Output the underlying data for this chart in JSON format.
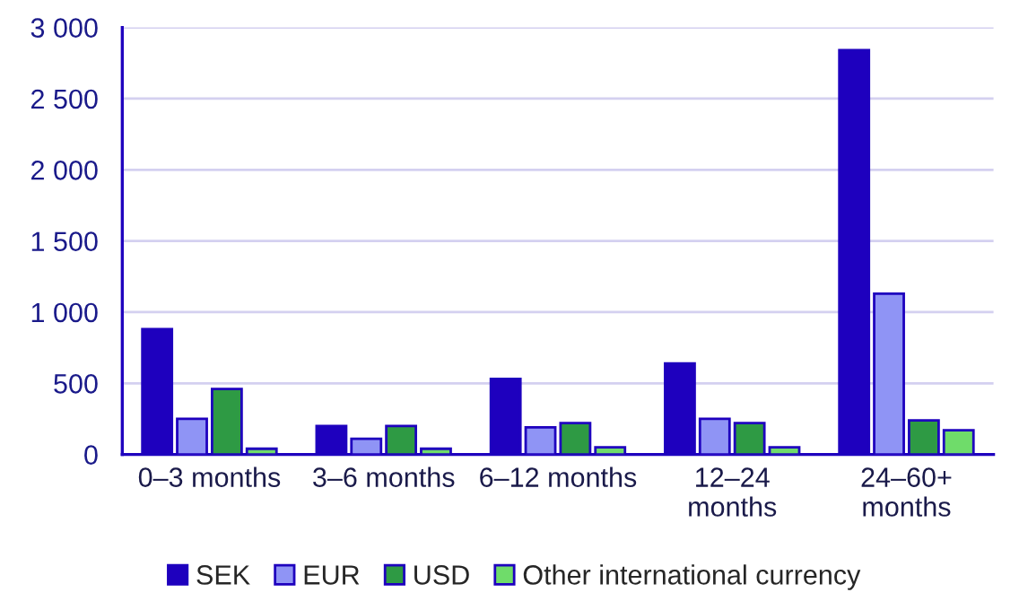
{
  "chart_data": {
    "type": "bar",
    "categories": [
      "0–3 months",
      "3–6 months",
      "6–12 months",
      "12–24\nmonths",
      "24–60+\nmonths"
    ],
    "series": [
      {
        "name": "SEK",
        "color": "#1e00be",
        "values": [
          880,
          200,
          530,
          640,
          2840
        ]
      },
      {
        "name": "EUR",
        "color": "#8f94f5",
        "values": [
          250,
          110,
          190,
          250,
          1130
        ]
      },
      {
        "name": "USD",
        "color": "#2e9a44",
        "values": [
          460,
          200,
          220,
          220,
          240
        ]
      },
      {
        "name": "Other international currency",
        "color": "#6fdc6a",
        "values": [
          40,
          40,
          50,
          50,
          170
        ]
      }
    ],
    "ylim": [
      0,
      3000
    ],
    "yticks": [
      0,
      500,
      {
        "value": 1000,
        "label": "1 000"
      },
      {
        "value": 1500,
        "label": "1 500"
      },
      {
        "value": 2000,
        "label": "2 000"
      },
      {
        "value": 2500,
        "label": "2 500"
      },
      {
        "value": 3000,
        "label": "3 000"
      }
    ],
    "grid": "y",
    "legend": "bottom"
  }
}
